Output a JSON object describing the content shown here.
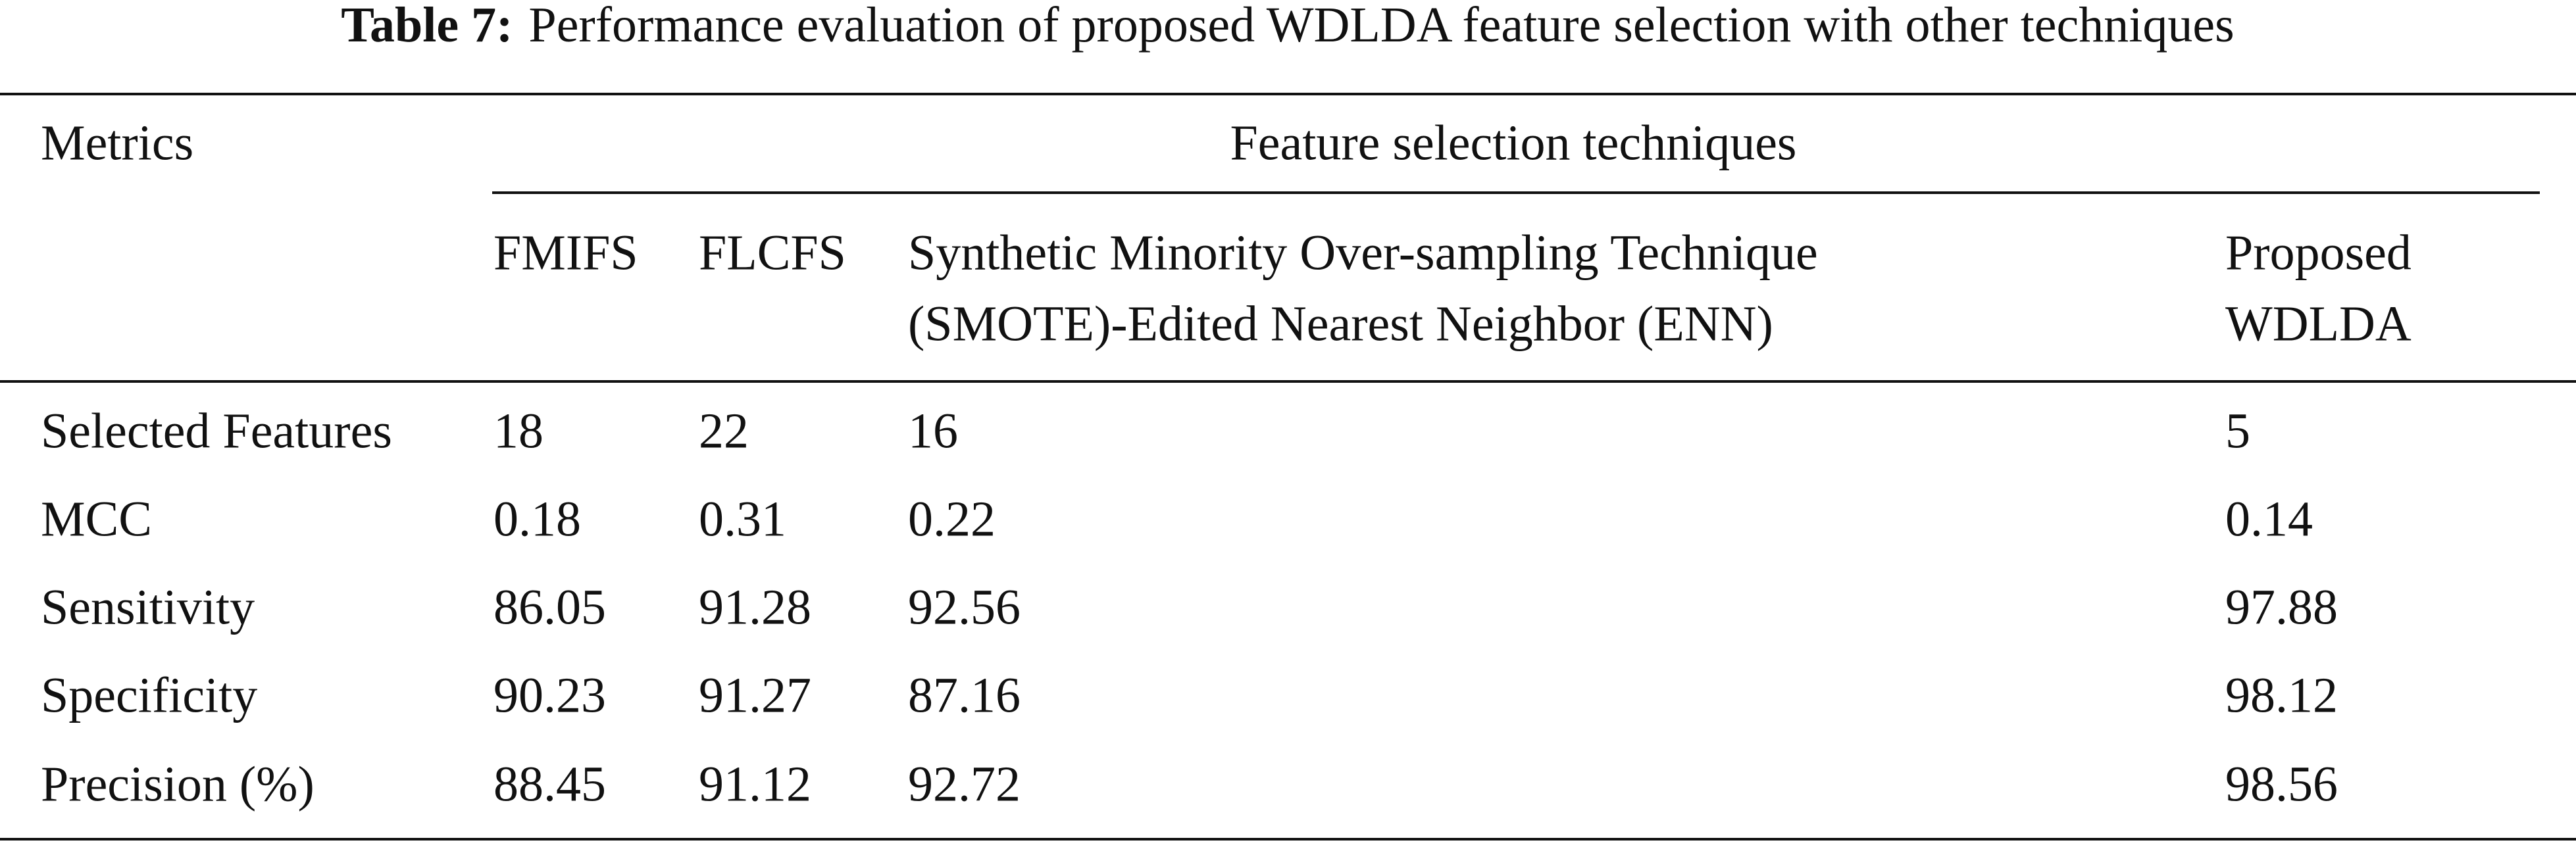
{
  "title": {
    "label": "Table 7:",
    "text": "Performance evaluation of proposed WDLDA feature selection with other techniques"
  },
  "table": {
    "stub_header": "Metrics",
    "group_header": "Feature selection techniques",
    "columns": [
      [
        "FMIFS"
      ],
      [
        "FLCFS"
      ],
      [
        "Synthetic Minority Over-sampling Technique",
        "(SMOTE)-Edited Nearest Neighbor (ENN)"
      ],
      [
        "Proposed",
        "WDLDA"
      ]
    ],
    "rows": [
      [
        "Selected Features",
        "18",
        "22",
        "16",
        "5"
      ],
      [
        "MCC",
        "0.18",
        "0.31",
        "0.22",
        "0.14"
      ],
      [
        "Sensitivity",
        "86.05",
        "91.28",
        "92.56",
        "97.88"
      ],
      [
        "Specificity",
        "90.23",
        "91.27",
        "87.16",
        "98.12"
      ],
      [
        "Precision (%)",
        "88.45",
        "91.12",
        "92.72",
        "98.56"
      ]
    ]
  }
}
